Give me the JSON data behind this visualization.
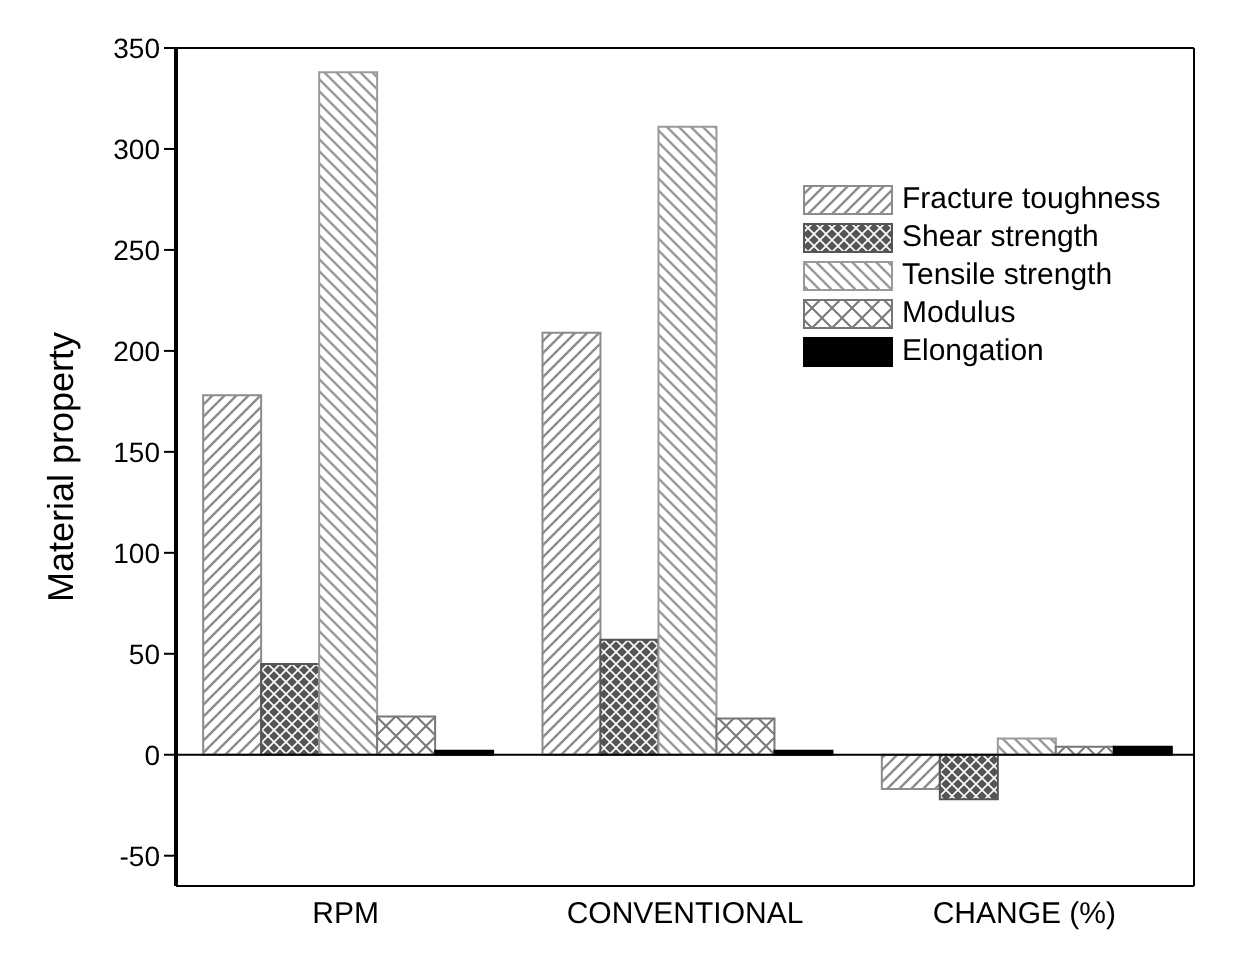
{
  "chart_data": {
    "type": "bar",
    "ylabel": "Material property",
    "categories": [
      "RPM",
      "CONVENTIONAL",
      "CHANGE (%)"
    ],
    "series": [
      {
        "name": "Fracture toughness",
        "color": "#8c8c8c",
        "values": [
          178,
          209,
          -17
        ]
      },
      {
        "name": "Shear strength",
        "color": "#555555",
        "values": [
          45,
          57,
          -22
        ]
      },
      {
        "name": "Tensile strength",
        "color": "#9a9a9a",
        "values": [
          338,
          311,
          8
        ]
      },
      {
        "name": "Modulus",
        "color": "#777777",
        "values": [
          19,
          18,
          4
        ]
      },
      {
        "name": "Elongation",
        "color": "#000000",
        "values": [
          2,
          2,
          4
        ]
      }
    ],
    "ylim": [
      -65,
      350
    ],
    "yticks": [
      -50,
      0,
      50,
      100,
      150,
      200,
      250,
      300,
      350
    ],
    "grid": false,
    "legend": "top right",
    "ref_lines": [
      {
        "axis": "y",
        "value": 0,
        "color": "#000000"
      }
    ]
  }
}
